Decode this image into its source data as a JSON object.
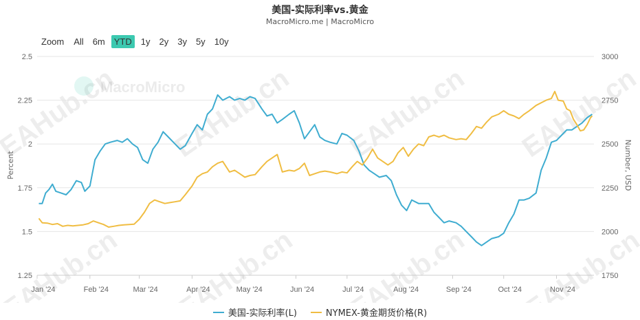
{
  "header": {
    "title": "美国-实际利率vs.黄金",
    "subtitle": "MacroMicro.me | MacroMicro"
  },
  "zoom": {
    "label": "Zoom",
    "buttons": [
      "All",
      "6m",
      "YTD",
      "1y",
      "2y",
      "3y",
      "5y",
      "10y"
    ],
    "active": "YTD"
  },
  "watermark": {
    "brand": "MacroMicro",
    "text": "EAHub.cn"
  },
  "colors": {
    "left_series": "#3eacd0",
    "right_series": "#f0bd42",
    "active_button": "#3cc9b0"
  },
  "chart_data": {
    "type": "line",
    "title": "美国-实际利率vs.黄金",
    "x_range": [
      "2024-01-01",
      "2024-11-23"
    ],
    "x_ticks": [
      "Jan '24",
      "Feb '24",
      "Mar '24",
      "Apr '24",
      "May '24",
      "Jun '24",
      "Jul '24",
      "Aug '24",
      "Sep '24",
      "Oct '24",
      "Nov '24"
    ],
    "y_left": {
      "label": "Percent",
      "range": [
        1.25,
        2.5
      ],
      "ticks": [
        "1.25",
        "1.5",
        "1.75",
        "2",
        "2.25",
        "2.5"
      ]
    },
    "y_right": {
      "label": "Number, USD",
      "range": [
        1750,
        3000
      ],
      "ticks": [
        "1750",
        "2000",
        "2250",
        "2500",
        "2750",
        "3000"
      ]
    },
    "grid": true,
    "legend_position": "bottom",
    "series": [
      {
        "name": "美国-实际利率(L)",
        "axis": "left",
        "points": [
          [
            "2024-01-02",
            1.66
          ],
          [
            "2024-01-04",
            1.66
          ],
          [
            "2024-01-06",
            1.72
          ],
          [
            "2024-01-08",
            1.74
          ],
          [
            "2024-01-10",
            1.77
          ],
          [
            "2024-01-12",
            1.73
          ],
          [
            "2024-01-15",
            1.72
          ],
          [
            "2024-01-18",
            1.71
          ],
          [
            "2024-01-21",
            1.74
          ],
          [
            "2024-01-24",
            1.79
          ],
          [
            "2024-01-27",
            1.78
          ],
          [
            "2024-01-29",
            1.73
          ],
          [
            "2024-02-01",
            1.76
          ],
          [
            "2024-02-04",
            1.91
          ],
          [
            "2024-02-07",
            1.96
          ],
          [
            "2024-02-10",
            2.0
          ],
          [
            "2024-02-13",
            2.01
          ],
          [
            "2024-02-17",
            2.02
          ],
          [
            "2024-02-20",
            2.01
          ],
          [
            "2024-02-23",
            2.03
          ],
          [
            "2024-02-26",
            2.0
          ],
          [
            "2024-02-29",
            1.98
          ],
          [
            "2024-03-03",
            1.91
          ],
          [
            "2024-03-06",
            1.89
          ],
          [
            "2024-03-09",
            1.97
          ],
          [
            "2024-03-12",
            2.01
          ],
          [
            "2024-03-15",
            2.07
          ],
          [
            "2024-03-18",
            2.04
          ],
          [
            "2024-03-21",
            2.01
          ],
          [
            "2024-03-25",
            1.97
          ],
          [
            "2024-03-28",
            1.99
          ],
          [
            "2024-04-01",
            2.06
          ],
          [
            "2024-04-04",
            2.11
          ],
          [
            "2024-04-07",
            2.08
          ],
          [
            "2024-04-10",
            2.17
          ],
          [
            "2024-04-13",
            2.2
          ],
          [
            "2024-04-16",
            2.28
          ],
          [
            "2024-04-19",
            2.25
          ],
          [
            "2024-04-23",
            2.27
          ],
          [
            "2024-04-26",
            2.25
          ],
          [
            "2024-04-29",
            2.26
          ],
          [
            "2024-05-02",
            2.25
          ],
          [
            "2024-05-05",
            2.27
          ],
          [
            "2024-05-08",
            2.26
          ],
          [
            "2024-05-12",
            2.2
          ],
          [
            "2024-05-15",
            2.16
          ],
          [
            "2024-05-18",
            2.17
          ],
          [
            "2024-05-21",
            2.12
          ],
          [
            "2024-05-24",
            2.14
          ],
          [
            "2024-05-28",
            2.17
          ],
          [
            "2024-05-31",
            2.19
          ],
          [
            "2024-06-03",
            2.12
          ],
          [
            "2024-06-06",
            2.03
          ],
          [
            "2024-06-09",
            2.07
          ],
          [
            "2024-06-12",
            2.11
          ],
          [
            "2024-06-15",
            2.04
          ],
          [
            "2024-06-18",
            2.02
          ],
          [
            "2024-06-21",
            2.01
          ],
          [
            "2024-06-25",
            2.0
          ],
          [
            "2024-06-28",
            2.06
          ],
          [
            "2024-07-01",
            2.05
          ],
          [
            "2024-07-05",
            2.02
          ],
          [
            "2024-07-08",
            1.96
          ],
          [
            "2024-07-11",
            1.88
          ],
          [
            "2024-07-14",
            1.85
          ],
          [
            "2024-07-17",
            1.83
          ],
          [
            "2024-07-20",
            1.81
          ],
          [
            "2024-07-24",
            1.82
          ],
          [
            "2024-07-27",
            1.79
          ],
          [
            "2024-07-30",
            1.71
          ],
          [
            "2024-08-02",
            1.65
          ],
          [
            "2024-08-05",
            1.62
          ],
          [
            "2024-08-08",
            1.68
          ],
          [
            "2024-08-12",
            1.66
          ],
          [
            "2024-08-15",
            1.66
          ],
          [
            "2024-08-18",
            1.66
          ],
          [
            "2024-08-21",
            1.61
          ],
          [
            "2024-08-24",
            1.58
          ],
          [
            "2024-08-27",
            1.55
          ],
          [
            "2024-08-30",
            1.56
          ],
          [
            "2024-09-03",
            1.55
          ],
          [
            "2024-09-06",
            1.53
          ],
          [
            "2024-09-09",
            1.5
          ],
          [
            "2024-09-12",
            1.47
          ],
          [
            "2024-09-15",
            1.44
          ],
          [
            "2024-09-18",
            1.42
          ],
          [
            "2024-09-21",
            1.44
          ],
          [
            "2024-09-24",
            1.46
          ],
          [
            "2024-09-28",
            1.47
          ],
          [
            "2024-10-01",
            1.49
          ],
          [
            "2024-10-04",
            1.55
          ],
          [
            "2024-10-07",
            1.6
          ],
          [
            "2024-10-10",
            1.68
          ],
          [
            "2024-10-13",
            1.68
          ],
          [
            "2024-10-16",
            1.69
          ],
          [
            "2024-10-20",
            1.72
          ],
          [
            "2024-10-23",
            1.85
          ],
          [
            "2024-10-26",
            1.92
          ],
          [
            "2024-10-29",
            2.01
          ],
          [
            "2024-11-01",
            2.02
          ],
          [
            "2024-11-04",
            2.05
          ],
          [
            "2024-11-07",
            2.08
          ],
          [
            "2024-11-10",
            2.08
          ],
          [
            "2024-11-13",
            2.1
          ],
          [
            "2024-11-16",
            2.12
          ],
          [
            "2024-11-19",
            2.15
          ],
          [
            "2024-11-22",
            2.17
          ]
        ]
      },
      {
        "name": "NYMEX-黄金期货价格(R)",
        "axis": "right",
        "points": [
          [
            "2024-01-02",
            2075
          ],
          [
            "2024-01-04",
            2050
          ],
          [
            "2024-01-07",
            2048
          ],
          [
            "2024-01-10",
            2040
          ],
          [
            "2024-01-13",
            2045
          ],
          [
            "2024-01-16",
            2030
          ],
          [
            "2024-01-19",
            2035
          ],
          [
            "2024-01-22",
            2032
          ],
          [
            "2024-01-25",
            2035
          ],
          [
            "2024-01-28",
            2038
          ],
          [
            "2024-01-31",
            2045
          ],
          [
            "2024-02-03",
            2060
          ],
          [
            "2024-02-06",
            2050
          ],
          [
            "2024-02-09",
            2040
          ],
          [
            "2024-02-12",
            2025
          ],
          [
            "2024-02-15",
            2030
          ],
          [
            "2024-02-18",
            2035
          ],
          [
            "2024-02-21",
            2038
          ],
          [
            "2024-02-24",
            2040
          ],
          [
            "2024-02-27",
            2042
          ],
          [
            "2024-03-01",
            2070
          ],
          [
            "2024-03-04",
            2110
          ],
          [
            "2024-03-07",
            2160
          ],
          [
            "2024-03-10",
            2180
          ],
          [
            "2024-03-13",
            2170
          ],
          [
            "2024-03-16",
            2160
          ],
          [
            "2024-03-19",
            2165
          ],
          [
            "2024-03-22",
            2170
          ],
          [
            "2024-03-25",
            2175
          ],
          [
            "2024-03-28",
            2210
          ],
          [
            "2024-04-01",
            2260
          ],
          [
            "2024-04-04",
            2310
          ],
          [
            "2024-04-07",
            2330
          ],
          [
            "2024-04-10",
            2340
          ],
          [
            "2024-04-13",
            2370
          ],
          [
            "2024-04-16",
            2390
          ],
          [
            "2024-04-19",
            2400
          ],
          [
            "2024-04-23",
            2340
          ],
          [
            "2024-04-26",
            2350
          ],
          [
            "2024-04-29",
            2330
          ],
          [
            "2024-05-02",
            2310
          ],
          [
            "2024-05-05",
            2320
          ],
          [
            "2024-05-08",
            2325
          ],
          [
            "2024-05-12",
            2370
          ],
          [
            "2024-05-15",
            2400
          ],
          [
            "2024-05-18",
            2420
          ],
          [
            "2024-05-21",
            2440
          ],
          [
            "2024-05-24",
            2340
          ],
          [
            "2024-05-28",
            2350
          ],
          [
            "2024-05-31",
            2345
          ],
          [
            "2024-06-03",
            2360
          ],
          [
            "2024-06-06",
            2390
          ],
          [
            "2024-06-09",
            2320
          ],
          [
            "2024-06-12",
            2330
          ],
          [
            "2024-06-15",
            2340
          ],
          [
            "2024-06-18",
            2345
          ],
          [
            "2024-06-21",
            2340
          ],
          [
            "2024-06-25",
            2330
          ],
          [
            "2024-06-28",
            2340
          ],
          [
            "2024-07-01",
            2335
          ],
          [
            "2024-07-04",
            2370
          ],
          [
            "2024-07-07",
            2400
          ],
          [
            "2024-07-10",
            2380
          ],
          [
            "2024-07-13",
            2420
          ],
          [
            "2024-07-16",
            2470
          ],
          [
            "2024-07-19",
            2420
          ],
          [
            "2024-07-22",
            2400
          ],
          [
            "2024-07-25",
            2380
          ],
          [
            "2024-07-28",
            2400
          ],
          [
            "2024-07-31",
            2450
          ],
          [
            "2024-08-03",
            2480
          ],
          [
            "2024-08-06",
            2430
          ],
          [
            "2024-08-09",
            2470
          ],
          [
            "2024-08-12",
            2500
          ],
          [
            "2024-08-15",
            2490
          ],
          [
            "2024-08-18",
            2540
          ],
          [
            "2024-08-21",
            2550
          ],
          [
            "2024-08-24",
            2540
          ],
          [
            "2024-08-27",
            2550
          ],
          [
            "2024-08-30",
            2535
          ],
          [
            "2024-09-03",
            2525
          ],
          [
            "2024-09-06",
            2530
          ],
          [
            "2024-09-09",
            2525
          ],
          [
            "2024-09-12",
            2560
          ],
          [
            "2024-09-15",
            2600
          ],
          [
            "2024-09-18",
            2590
          ],
          [
            "2024-09-21",
            2625
          ],
          [
            "2024-09-24",
            2655
          ],
          [
            "2024-09-28",
            2670
          ],
          [
            "2024-10-01",
            2690
          ],
          [
            "2024-10-04",
            2670
          ],
          [
            "2024-10-07",
            2660
          ],
          [
            "2024-10-10",
            2645
          ],
          [
            "2024-10-13",
            2670
          ],
          [
            "2024-10-16",
            2690
          ],
          [
            "2024-10-20",
            2720
          ],
          [
            "2024-10-23",
            2735
          ],
          [
            "2024-10-26",
            2750
          ],
          [
            "2024-10-29",
            2760
          ],
          [
            "2024-10-31",
            2800
          ],
          [
            "2024-11-02",
            2750
          ],
          [
            "2024-11-05",
            2745
          ],
          [
            "2024-11-07",
            2700
          ],
          [
            "2024-11-09",
            2690
          ],
          [
            "2024-11-11",
            2640
          ],
          [
            "2024-11-13",
            2610
          ],
          [
            "2024-11-15",
            2575
          ],
          [
            "2024-11-17",
            2580
          ],
          [
            "2024-11-19",
            2610
          ],
          [
            "2024-11-21",
            2650
          ],
          [
            "2024-11-22",
            2660
          ]
        ]
      }
    ]
  }
}
